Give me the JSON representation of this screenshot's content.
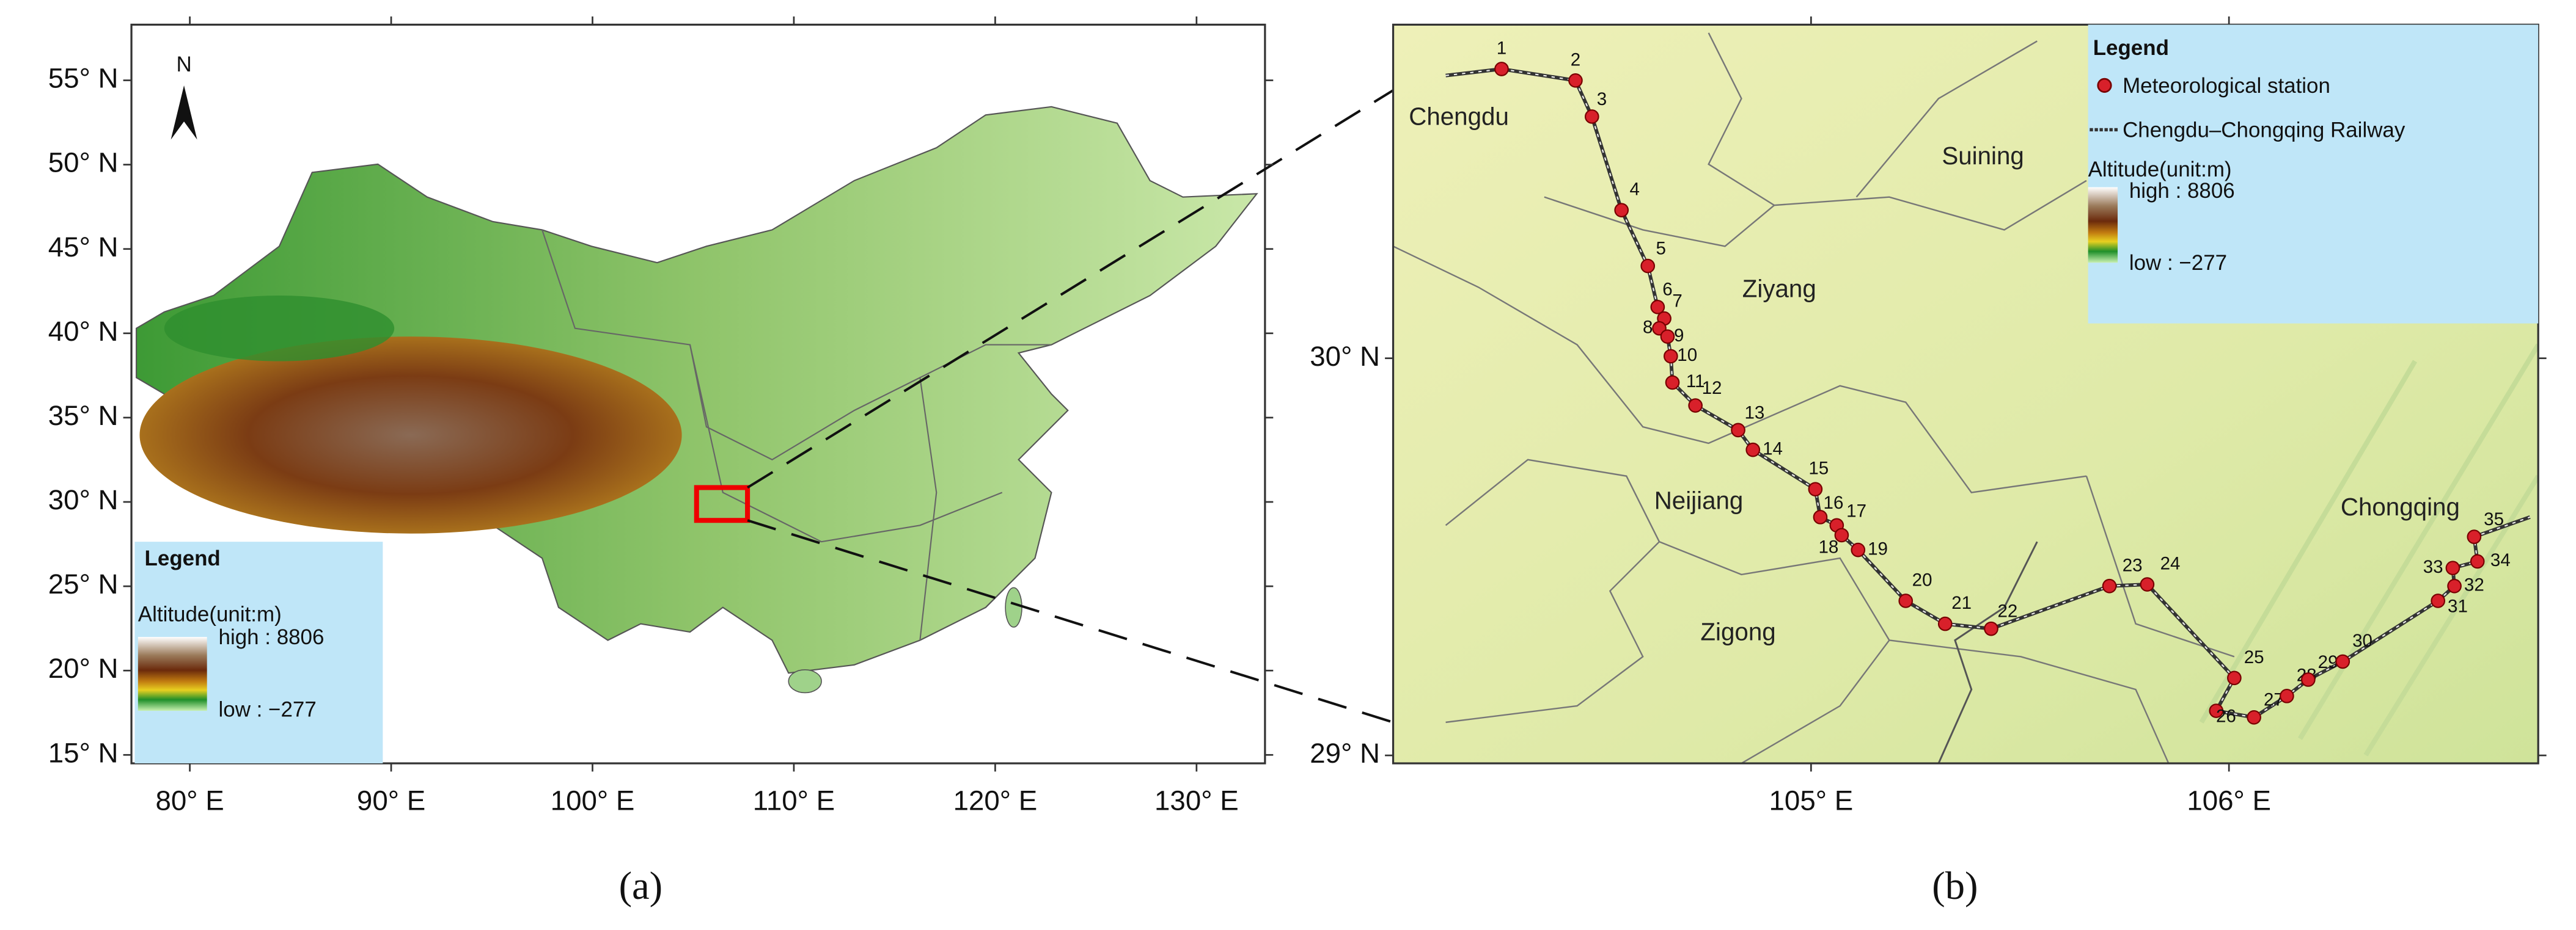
{
  "panel_a": {
    "north_label": "N",
    "xlim": [
      77.1,
      133.4
    ],
    "ylim": [
      14.5,
      58.3
    ],
    "xticks": [
      {
        "value": 80,
        "label": "80° E"
      },
      {
        "value": 90,
        "label": "90° E"
      },
      {
        "value": 100,
        "label": "100° E"
      },
      {
        "value": 110,
        "label": "110° E"
      },
      {
        "value": 120,
        "label": "120° E"
      },
      {
        "value": 130,
        "label": "130° E"
      }
    ],
    "yticks": [
      {
        "value": 15,
        "label": "15° N"
      },
      {
        "value": 20,
        "label": "20° N"
      },
      {
        "value": 25,
        "label": "25° N"
      },
      {
        "value": 30,
        "label": "30° N"
      },
      {
        "value": 35,
        "label": "35° N"
      },
      {
        "value": 40,
        "label": "40° N"
      },
      {
        "value": 45,
        "label": "45° N"
      },
      {
        "value": 50,
        "label": "50° N"
      },
      {
        "value": 55,
        "label": "55° N"
      }
    ],
    "legend": {
      "title": "Legend",
      "subtitle": "Altitude(unit:m)",
      "high": "high : 8806",
      "low": "low : −277"
    },
    "caption": "(a)"
  },
  "panel_b": {
    "xlim": [
      104.0,
      106.74
    ],
    "ylim": [
      28.98,
      30.84
    ],
    "xticks": [
      {
        "value": 105,
        "label": "105° E"
      },
      {
        "value": 106,
        "label": "106° E"
      }
    ],
    "yticks": [
      {
        "value": 29,
        "label": "29° N"
      },
      {
        "value": 30,
        "label": "30° N"
      }
    ],
    "legend": {
      "title": "Legend",
      "station": "Meteorological station",
      "railway": "Chengdu–Chongqing Railway",
      "subtitle": "Altitude(unit:m)",
      "high": "high : 8806",
      "low": "low : −277"
    },
    "cities": [
      "Chengdu",
      "Suining",
      "Ziyang",
      "Neijiang",
      "Zigong",
      "Chongqing"
    ],
    "stations": [
      "1",
      "2",
      "3",
      "4",
      "5",
      "6",
      "7",
      "8",
      "9",
      "10",
      "11",
      "12",
      "13",
      "14",
      "15",
      "16",
      "17",
      "18",
      "19",
      "20",
      "21",
      "22",
      "23",
      "24",
      "25",
      "26",
      "27",
      "28",
      "29",
      "30",
      "31",
      "32",
      "33",
      "34",
      "35"
    ],
    "caption": "(b)"
  }
}
